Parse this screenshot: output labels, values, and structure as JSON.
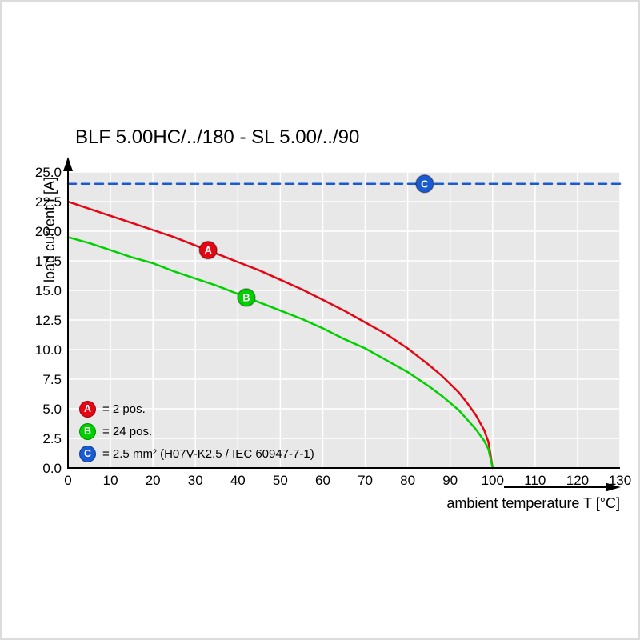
{
  "chart_data": {
    "type": "line",
    "title": "BLF 5.00HC/../180 - SL 5.00/../90",
    "xlabel": "ambient temperature T [°C]",
    "ylabel": "load current I [A]",
    "xlim": [
      0,
      130
    ],
    "ylim": [
      0,
      25
    ],
    "xticks": [
      0,
      10,
      20,
      30,
      40,
      50,
      60,
      70,
      80,
      90,
      100,
      110,
      120,
      130
    ],
    "yticks": [
      0,
      2.5,
      5,
      7.5,
      10,
      12.5,
      15,
      17.5,
      20,
      22.5,
      25
    ],
    "ytick_labels": [
      "0.0",
      "2.5",
      "5.0",
      "7.5",
      "10.0",
      "12.5",
      "15.0",
      "17.5",
      "20.0",
      "22.5",
      "25.0"
    ],
    "grid": true,
    "plot_bg": "#e8e8e8",
    "grid_color": "#ffffff",
    "axis_color": "#000000",
    "series": [
      {
        "id": "A",
        "name": "2 pos.",
        "color": "#e30613",
        "style": "solid",
        "x": [
          0,
          5,
          10,
          15,
          20,
          25,
          30,
          35,
          40,
          45,
          50,
          55,
          60,
          65,
          70,
          75,
          80,
          85,
          88,
          90,
          92,
          94,
          96,
          98,
          99,
          100
        ],
        "y": [
          22.5,
          21.9,
          21.3,
          20.7,
          20.1,
          19.5,
          18.8,
          18.1,
          17.4,
          16.7,
          15.9,
          15.1,
          14.2,
          13.3,
          12.3,
          11.3,
          10.1,
          8.7,
          7.8,
          7.1,
          6.4,
          5.5,
          4.5,
          3.2,
          2.2,
          0
        ],
        "marker": {
          "x": 33,
          "y": 18.4,
          "label": "A"
        }
      },
      {
        "id": "B",
        "name": "24 pos.",
        "color": "#00d000",
        "style": "solid",
        "x": [
          0,
          5,
          10,
          15,
          20,
          25,
          30,
          35,
          40,
          45,
          50,
          55,
          60,
          65,
          70,
          75,
          80,
          85,
          88,
          90,
          92,
          94,
          96,
          98,
          99,
          100
        ],
        "y": [
          19.5,
          19.0,
          18.4,
          17.8,
          17.3,
          16.6,
          16.0,
          15.4,
          14.7,
          14.0,
          13.3,
          12.6,
          11.8,
          10.9,
          10.1,
          9.1,
          8.1,
          6.9,
          6.1,
          5.5,
          4.9,
          4.1,
          3.3,
          2.3,
          1.6,
          0
        ],
        "marker": {
          "x": 42,
          "y": 14.4,
          "label": "B"
        }
      },
      {
        "id": "C",
        "name": "2.5 mm² (H07V-K2.5 / IEC 60947-7-1)",
        "color": "#1a5ad2",
        "style": "dashed",
        "x": [
          0,
          130
        ],
        "y": [
          24,
          24
        ],
        "marker": {
          "x": 84,
          "y": 24,
          "label": "C"
        }
      }
    ],
    "legend": [
      {
        "badge": "A",
        "color": "#e30613",
        "text": "= 2 pos."
      },
      {
        "badge": "B",
        "color": "#00d000",
        "text": "= 24 pos."
      },
      {
        "badge": "C",
        "color": "#1a5ad2",
        "text": "= 2.5 mm² (H07V-K2.5 / IEC 60947-7-1)"
      }
    ]
  }
}
